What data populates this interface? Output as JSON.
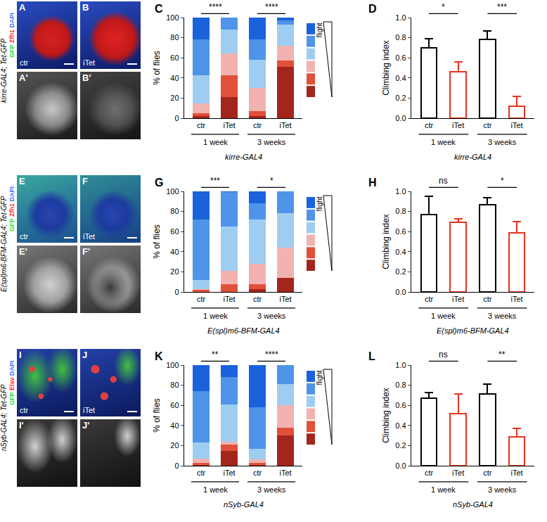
{
  "images": [
    {
      "label": "kirre-GAL4; Tet-GFP",
      "channels": [
        {
          "text": "GFP",
          "color": "#3ddc3d"
        },
        {
          "text": "Zfh1",
          "color": "#ff3030"
        },
        {
          "text": "DAPI",
          "color": "#5070ff"
        }
      ],
      "panels": [
        {
          "letter": "A",
          "letter_gray": "A'",
          "condition": "ctr"
        },
        {
          "letter": "B",
          "letter_gray": "B'",
          "condition": "iTet"
        }
      ]
    },
    {
      "label": "E(spl)m6-BFM-GAL4; Tet-GFP",
      "channels": [
        {
          "text": "GFP",
          "color": "#3ddc3d"
        },
        {
          "text": "Zfh1",
          "color": "#ff3030"
        },
        {
          "text": "DAPI",
          "color": "#5070ff"
        }
      ],
      "panels": [
        {
          "letter": "E",
          "letter_gray": "E'",
          "condition": "ctr"
        },
        {
          "letter": "F",
          "letter_gray": "F'",
          "condition": "iTet"
        }
      ]
    },
    {
      "label": "nSyb-GAL4; Tet-GFP",
      "channels": [
        {
          "text": "GFP",
          "color": "#3ddc3d"
        },
        {
          "text": "Elav",
          "color": "#ff3030"
        },
        {
          "text": "DAPI",
          "color": "#5070ff"
        }
      ],
      "panels": [
        {
          "letter": "I",
          "letter_gray": "I'",
          "condition": "ctr"
        },
        {
          "letter": "J",
          "letter_gray": "J'",
          "condition": "iTet"
        }
      ]
    }
  ],
  "chart_data": [
    {
      "panel": "C",
      "type": "bar",
      "stacked": true,
      "categories": [
        "ctr",
        "iTet",
        "ctr",
        "iTet"
      ],
      "groups": [
        {
          "label": "1 week",
          "significance": "****"
        },
        {
          "label": "3 weeks",
          "significance": "****"
        }
      ],
      "x_label": "kirre-GAL4",
      "y_label": "% of flies",
      "ylim": [
        0,
        100
      ],
      "yticks": [
        0,
        20,
        40,
        60,
        80,
        100
      ],
      "legend": "right",
      "legend_label": "flight",
      "series": [
        {
          "color": "#a3261c",
          "values": [
            2,
            21,
            2,
            51
          ]
        },
        {
          "color": "#e0503a",
          "values": [
            3,
            22,
            5,
            6
          ]
        },
        {
          "color": "#f2b3b0",
          "values": [
            10,
            21,
            23,
            15
          ]
        },
        {
          "color": "#9fcdf2",
          "values": [
            28,
            24,
            28,
            21
          ]
        },
        {
          "color": "#4f94e8",
          "values": [
            35,
            12,
            20,
            4
          ]
        },
        {
          "color": "#1a62dc",
          "values": [
            22,
            0,
            22,
            3
          ]
        }
      ]
    },
    {
      "panel": "D",
      "type": "bar",
      "categories": [
        "ctr",
        "iTet",
        "ctr",
        "iTet"
      ],
      "groups": [
        {
          "label": "1 week",
          "significance": "*"
        },
        {
          "label": "3 weeks",
          "significance": "***"
        }
      ],
      "x_label": "kirre-GAL4",
      "y_label": "Climbing index",
      "ylim": [
        0,
        1
      ],
      "yticks": [
        {
          "value": 0,
          "label": "0.0"
        },
        0.2,
        0.4,
        0.6,
        0.8,
        {
          "value": 1,
          "label": "1.0"
        }
      ],
      "values": [
        0.7,
        0.46,
        0.78,
        0.12
      ],
      "errors": [
        0.09,
        0.1,
        0.09,
        0.1
      ],
      "colors": [
        "#000000",
        "#e8321e",
        "#000000",
        "#e8321e"
      ]
    },
    {
      "panel": "G",
      "type": "bar",
      "stacked": true,
      "categories": [
        "ctr",
        "iTet",
        "ctr",
        "iTet"
      ],
      "groups": [
        {
          "label": "1 week",
          "significance": "***"
        },
        {
          "label": "3 weeks",
          "significance": "*"
        }
      ],
      "x_label": "E(spl)m6-BFM-GAL4",
      "y_label": "% of flies",
      "ylim": [
        0,
        100
      ],
      "yticks": [
        0,
        20,
        40,
        60,
        80,
        100
      ],
      "legend": "right",
      "legend_label": "flight",
      "series": [
        {
          "color": "#a3261c",
          "values": [
            0,
            0,
            3,
            14
          ]
        },
        {
          "color": "#e0503a",
          "values": [
            2,
            8,
            5,
            0
          ]
        },
        {
          "color": "#f2b3b0",
          "values": [
            1,
            13,
            20,
            30
          ]
        },
        {
          "color": "#9fcdf2",
          "values": [
            9,
            44,
            44,
            34
          ]
        },
        {
          "color": "#4f94e8",
          "values": [
            60,
            34,
            16,
            22
          ]
        },
        {
          "color": "#1a62dc",
          "values": [
            28,
            1,
            12,
            0
          ]
        }
      ]
    },
    {
      "panel": "H",
      "type": "bar",
      "categories": [
        "ctr",
        "iTet",
        "ctr",
        "iTet"
      ],
      "groups": [
        {
          "label": "1 week",
          "significance": "ns"
        },
        {
          "label": "3 weeks",
          "significance": "*"
        }
      ],
      "x_label": "E(spl)m6-BFM-GAL4",
      "y_label": "Climbing index",
      "ylim": [
        0,
        1
      ],
      "yticks": [
        {
          "value": 0,
          "label": "0.0"
        },
        0.2,
        0.4,
        0.6,
        0.8,
        {
          "value": 1,
          "label": "1.0"
        }
      ],
      "values": [
        0.77,
        0.69,
        0.87,
        0.59
      ],
      "errors": [
        0.18,
        0.04,
        0.07,
        0.11
      ],
      "colors": [
        "#000000",
        "#e8321e",
        "#000000",
        "#e8321e"
      ]
    },
    {
      "panel": "K",
      "type": "bar",
      "stacked": true,
      "categories": [
        "ctr",
        "iTet",
        "ctr",
        "iTet"
      ],
      "groups": [
        {
          "label": "1 week",
          "significance": "**"
        },
        {
          "label": "3 weeks",
          "significance": "****"
        }
      ],
      "x_label": "nSyb-GAL4",
      "y_label": "% of flies",
      "ylim": [
        0,
        100
      ],
      "yticks": [
        0,
        20,
        40,
        60,
        80,
        100
      ],
      "legend": "right",
      "legend_label": "flight",
      "series": [
        {
          "color": "#a3261c",
          "values": [
            1,
            15,
            1,
            30
          ]
        },
        {
          "color": "#e0503a",
          "values": [
            2,
            6,
            2,
            8
          ]
        },
        {
          "color": "#f2b3b0",
          "values": [
            4,
            3,
            3,
            22
          ]
        },
        {
          "color": "#9fcdf2",
          "values": [
            16,
            37,
            11,
            21
          ]
        },
        {
          "color": "#4f94e8",
          "values": [
            51,
            27,
            41,
            19
          ]
        },
        {
          "color": "#1a62dc",
          "values": [
            26,
            12,
            42,
            0
          ]
        }
      ]
    },
    {
      "panel": "L",
      "type": "bar",
      "categories": [
        "ctr",
        "iTet",
        "ctr",
        "iTet"
      ],
      "groups": [
        {
          "label": "1 week",
          "significance": "ns"
        },
        {
          "label": "3 weeks",
          "significance": "**"
        }
      ],
      "x_label": "nSyb-GAL4",
      "y_label": "Climbing index",
      "ylim": [
        0,
        1
      ],
      "yticks": [
        {
          "value": 0,
          "label": "0.0"
        },
        0.2,
        0.4,
        0.6,
        0.8,
        {
          "value": 1,
          "label": "1.0"
        }
      ],
      "values": [
        0.67,
        0.52,
        0.71,
        0.29
      ],
      "errors": [
        0.06,
        0.19,
        0.1,
        0.08
      ],
      "colors": [
        "#000000",
        "#e8321e",
        "#000000",
        "#e8321e"
      ]
    }
  ]
}
